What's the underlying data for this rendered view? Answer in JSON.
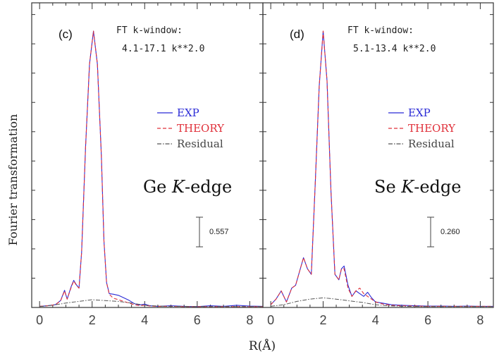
{
  "figure": {
    "ylabel": "Fourier transformation",
    "xlabel": "R(Å)",
    "colors": {
      "exp": "#2b2bd6",
      "theory": "#e0303a",
      "residual": "#555555",
      "axis": "#333333"
    }
  },
  "chart_data": [
    {
      "type": "line",
      "panel_label": "(c)",
      "window_title": "FT k-window:",
      "window_range": "4.1-17.1 k**2.0",
      "edge_element": "Ge",
      "edge_k": "K",
      "edge_suffix": "-edge",
      "scale_bar_value": 0.557,
      "scale_bar_label": "0.557",
      "xlim": [
        -0.3,
        8.5
      ],
      "ylim": [
        0,
        1.0
      ],
      "xticks": [
        0,
        2,
        4,
        6,
        8
      ],
      "legend": [
        "EXP",
        "THEORY",
        "Residual"
      ],
      "series": [
        {
          "name": "EXP",
          "x": [
            0.0,
            0.3,
            0.6,
            0.8,
            0.95,
            1.05,
            1.2,
            1.3,
            1.4,
            1.5,
            1.6,
            1.75,
            1.9,
            2.05,
            2.2,
            2.35,
            2.45,
            2.55,
            2.65,
            2.8,
            3.0,
            3.2,
            3.4,
            3.6,
            3.8,
            4.0,
            4.2,
            4.5,
            5.0,
            5.5,
            6.0,
            6.5,
            7.0,
            7.5,
            8.0,
            8.5
          ],
          "y": [
            0.004,
            0.006,
            0.01,
            0.025,
            0.062,
            0.03,
            0.075,
            0.098,
            0.082,
            0.07,
            0.2,
            0.58,
            0.88,
            1.0,
            0.88,
            0.55,
            0.24,
            0.09,
            0.05,
            0.048,
            0.044,
            0.035,
            0.026,
            0.014,
            0.009,
            0.012,
            0.006,
            0.004,
            0.006,
            0.004,
            0.003,
            0.006,
            0.004,
            0.008,
            0.005,
            0.004
          ]
        },
        {
          "name": "THEORY",
          "x": [
            0.0,
            0.3,
            0.6,
            0.8,
            0.95,
            1.05,
            1.2,
            1.3,
            1.4,
            1.5,
            1.6,
            1.75,
            1.9,
            2.05,
            2.2,
            2.35,
            2.45,
            2.55,
            2.65,
            2.8,
            3.0,
            3.2,
            3.4,
            3.6,
            3.8,
            4.0,
            4.2,
            4.5,
            5.0,
            5.5,
            6.0,
            6.5,
            7.0,
            7.5,
            8.0,
            8.5
          ],
          "y": [
            0.004,
            0.006,
            0.01,
            0.024,
            0.06,
            0.03,
            0.072,
            0.096,
            0.08,
            0.07,
            0.2,
            0.58,
            0.88,
            1.0,
            0.88,
            0.55,
            0.24,
            0.09,
            0.048,
            0.034,
            0.028,
            0.022,
            0.016,
            0.01,
            0.007,
            0.008,
            0.005,
            0.004,
            0.004,
            0.003,
            0.003,
            0.003,
            0.003,
            0.003,
            0.003,
            0.003
          ]
        },
        {
          "name": "Residual",
          "x": [
            0.0,
            0.5,
            1.0,
            1.5,
            2.0,
            2.5,
            3.0,
            3.5,
            4.0,
            4.5,
            5.0,
            6.0,
            7.0,
            8.0,
            8.5
          ],
          "y": [
            0.003,
            0.008,
            0.016,
            0.022,
            0.028,
            0.025,
            0.022,
            0.016,
            0.008,
            0.005,
            0.004,
            0.003,
            0.003,
            0.003,
            0.003
          ]
        }
      ]
    },
    {
      "type": "line",
      "panel_label": "(d)",
      "window_title": "FT k-window:",
      "window_range": "5.1-13.4 k**2.0",
      "edge_element": "Se",
      "edge_k": "K",
      "edge_suffix": "-edge",
      "scale_bar_value": 0.26,
      "scale_bar_label": "0.260",
      "xlim": [
        -0.3,
        8.5
      ],
      "ylim": [
        0,
        1.0
      ],
      "xticks": [
        0,
        2,
        4,
        6,
        8
      ],
      "legend": [
        "EXP",
        "THEORY",
        "Residual"
      ],
      "series": [
        {
          "name": "EXP",
          "x": [
            0.0,
            0.2,
            0.4,
            0.6,
            0.8,
            0.95,
            1.1,
            1.25,
            1.4,
            1.55,
            1.7,
            1.85,
            2.0,
            2.15,
            2.3,
            2.45,
            2.6,
            2.7,
            2.8,
            2.95,
            3.1,
            3.25,
            3.4,
            3.55,
            3.7,
            3.85,
            4.0,
            4.3,
            4.6,
            5.0,
            5.5,
            6.0,
            6.5,
            7.0,
            7.5,
            8.0,
            8.5
          ],
          "y": [
            0.01,
            0.03,
            0.06,
            0.02,
            0.07,
            0.08,
            0.13,
            0.18,
            0.14,
            0.12,
            0.45,
            0.8,
            1.0,
            0.82,
            0.42,
            0.12,
            0.1,
            0.14,
            0.15,
            0.08,
            0.04,
            0.06,
            0.05,
            0.04,
            0.055,
            0.035,
            0.02,
            0.015,
            0.01,
            0.008,
            0.006,
            0.005,
            0.005,
            0.004,
            0.005,
            0.004,
            0.004
          ]
        },
        {
          "name": "THEORY",
          "x": [
            0.0,
            0.2,
            0.4,
            0.6,
            0.8,
            0.95,
            1.1,
            1.25,
            1.4,
            1.55,
            1.7,
            1.85,
            2.0,
            2.15,
            2.3,
            2.45,
            2.6,
            2.7,
            2.8,
            2.95,
            3.1,
            3.25,
            3.4,
            3.55,
            3.7,
            3.85,
            4.0,
            4.3,
            4.6,
            5.0,
            5.5,
            6.0,
            6.5,
            7.0,
            7.5,
            8.0,
            8.5
          ],
          "y": [
            0.01,
            0.03,
            0.06,
            0.02,
            0.07,
            0.08,
            0.13,
            0.18,
            0.14,
            0.12,
            0.45,
            0.8,
            1.0,
            0.82,
            0.42,
            0.12,
            0.1,
            0.14,
            0.14,
            0.07,
            0.04,
            0.06,
            0.07,
            0.05,
            0.04,
            0.03,
            0.02,
            0.012,
            0.008,
            0.006,
            0.005,
            0.004,
            0.004,
            0.004,
            0.004,
            0.004,
            0.004
          ]
        },
        {
          "name": "Residual",
          "x": [
            0.0,
            0.5,
            1.0,
            1.5,
            2.0,
            2.5,
            3.0,
            3.5,
            4.0,
            4.5,
            5.0,
            6.0,
            7.0,
            8.0,
            8.5
          ],
          "y": [
            0.004,
            0.01,
            0.022,
            0.03,
            0.035,
            0.03,
            0.024,
            0.018,
            0.01,
            0.006,
            0.004,
            0.003,
            0.003,
            0.003,
            0.003
          ]
        }
      ]
    }
  ]
}
